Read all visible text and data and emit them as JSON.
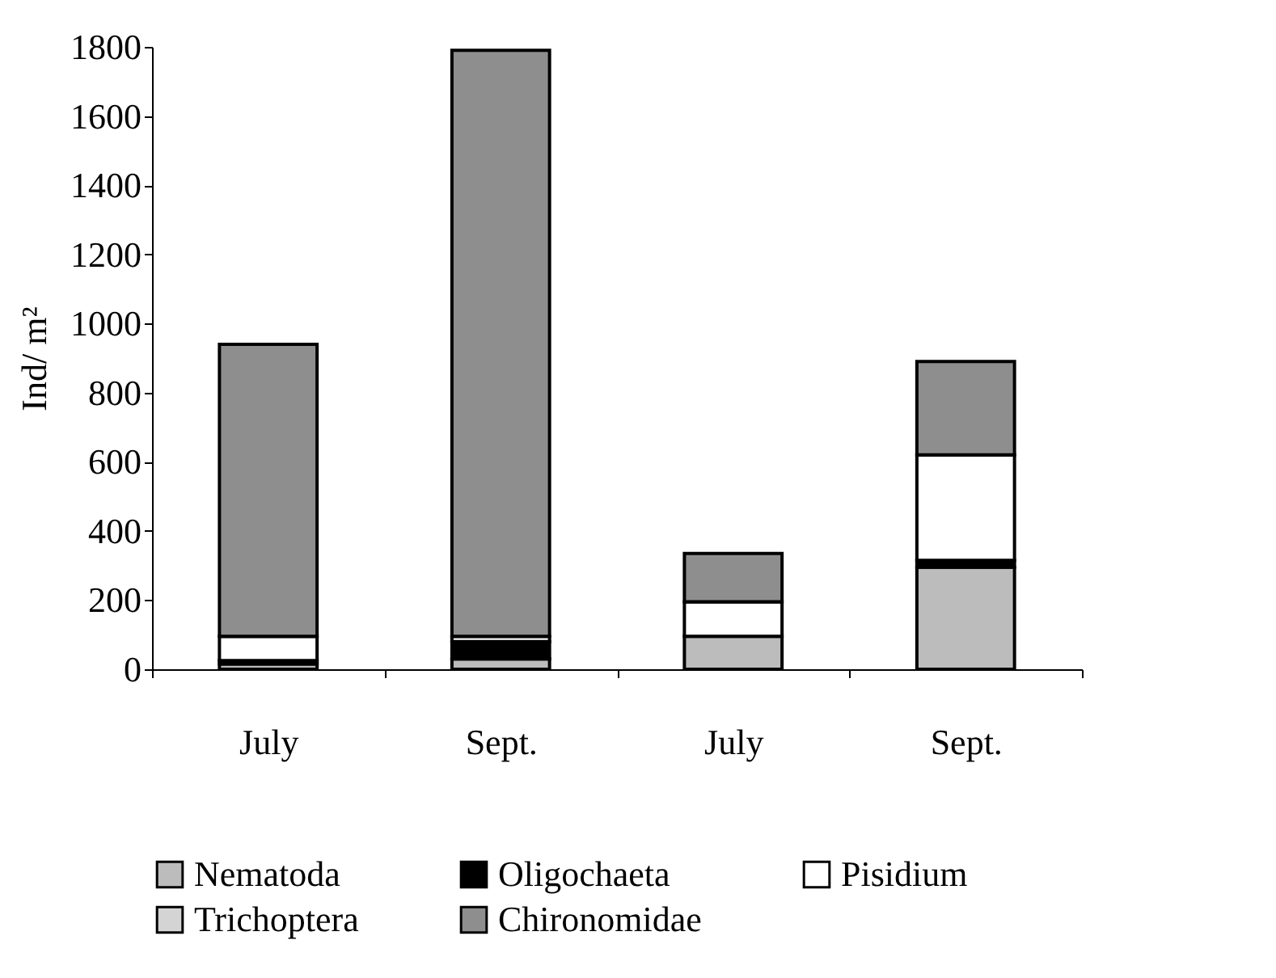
{
  "chart_data": {
    "type": "bar",
    "stacked": true,
    "ylabel": "Ind/ m²",
    "categories": [
      "July",
      "Sept.",
      "July",
      "Sept."
    ],
    "series": [
      {
        "name": "Nematoda",
        "color": "#bcbcbc",
        "values": [
          15,
          30,
          95,
          295
        ]
      },
      {
        "name": "Oligochaeta",
        "color": "#000000",
        "values": [
          10,
          50,
          null,
          20
        ]
      },
      {
        "name": "Pisidium",
        "color": "#ffffff",
        "values": [
          70,
          15,
          100,
          305
        ]
      },
      {
        "name": "Trichoptera",
        "color": "#d4d4d4",
        "values": [
          0,
          0,
          0,
          0
        ]
      },
      {
        "name": "Chironomidae",
        "color": "#8e8e8e",
        "values": [
          845,
          1695,
          140,
          270
        ]
      }
    ],
    "ylim": [
      0,
      1800
    ],
    "yticks": [
      0,
      200,
      400,
      600,
      800,
      1000,
      1200,
      1400,
      1600,
      1800
    ],
    "grid": false,
    "legend": "bottom"
  }
}
